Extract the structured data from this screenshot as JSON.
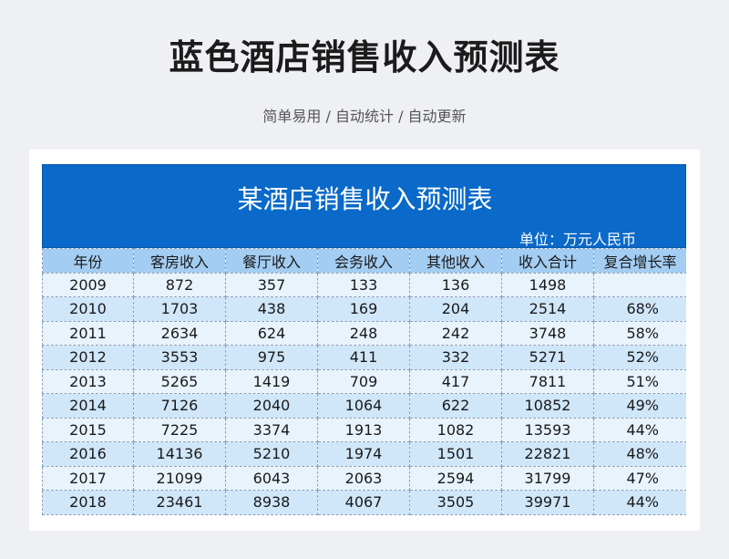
{
  "page": {
    "title": "蓝色酒店销售收入预测表",
    "subtitle": "简单易用 / 自动统计 / 自动更新"
  },
  "sheet": {
    "title": "某酒店销售收入预测表",
    "unit": "单位：万元人民币",
    "columns": [
      "年份",
      "客房收入",
      "餐厅收入",
      "会务收入",
      "其他收入",
      "收入合计",
      "复合增长率"
    ],
    "rows": [
      [
        "2009",
        "872",
        "357",
        "133",
        "136",
        "1498",
        ""
      ],
      [
        "2010",
        "1703",
        "438",
        "169",
        "204",
        "2514",
        "68%"
      ],
      [
        "2011",
        "2634",
        "624",
        "248",
        "242",
        "3748",
        "58%"
      ],
      [
        "2012",
        "3553",
        "975",
        "411",
        "332",
        "5271",
        "52%"
      ],
      [
        "2013",
        "5265",
        "1419",
        "709",
        "417",
        "7811",
        "51%"
      ],
      [
        "2014",
        "7126",
        "2040",
        "1064",
        "622",
        "10852",
        "49%"
      ],
      [
        "2015",
        "7225",
        "3374",
        "1913",
        "1082",
        "13593",
        "44%"
      ],
      [
        "2016",
        "14136",
        "5210",
        "1974",
        "1501",
        "22821",
        "48%"
      ],
      [
        "2017",
        "21099",
        "6043",
        "2063",
        "2594",
        "31799",
        "47%"
      ],
      [
        "2018",
        "23461",
        "8938",
        "4067",
        "3505",
        "39971",
        "44%"
      ]
    ]
  },
  "colors": {
    "header_band": "#0a69c9",
    "column_header": "#a3cdf2",
    "row_light": "#e8f3fc",
    "row_dark": "#d0e6f9"
  }
}
